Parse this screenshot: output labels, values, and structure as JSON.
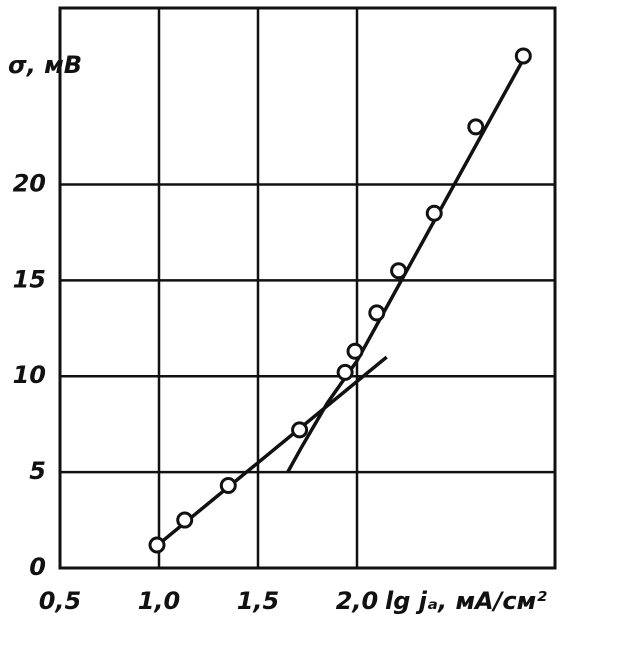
{
  "chart_data": {
    "type": "scatter",
    "y_label": "σ, мВ",
    "x_label": "lg jₐ, мА/см²",
    "xlim": [
      0.5,
      3.0
    ],
    "ylim": [
      0,
      29.2
    ],
    "xticks": [
      {
        "value": 0.5,
        "label": "0,5"
      },
      {
        "value": 1.0,
        "label": "1,0"
      },
      {
        "value": 1.5,
        "label": "1,5"
      },
      {
        "value": 2.0,
        "label": "2,0"
      }
    ],
    "yticks": [
      0,
      5,
      10,
      15,
      20
    ],
    "grid": true,
    "color": "#111111",
    "series": [
      {
        "style": "markers",
        "x": [
          0.99,
          1.13,
          1.35,
          1.71,
          1.94,
          1.99,
          2.1,
          2.21,
          2.39,
          2.6,
          2.84
        ],
        "values": [
          1.2,
          2.5,
          4.3,
          7.2,
          10.2,
          11.3,
          13.3,
          15.5,
          18.5,
          23.0,
          26.7
        ]
      },
      {
        "style": "line",
        "x": [
          0.97,
          2.15
        ],
        "values": [
          1.0,
          11.0
        ]
      },
      {
        "style": "line",
        "x": [
          1.65,
          1.72,
          1.85,
          2.0,
          2.86
        ],
        "values": [
          5.0,
          6.3,
          8.6,
          10.8,
          26.9
        ]
      }
    ]
  }
}
